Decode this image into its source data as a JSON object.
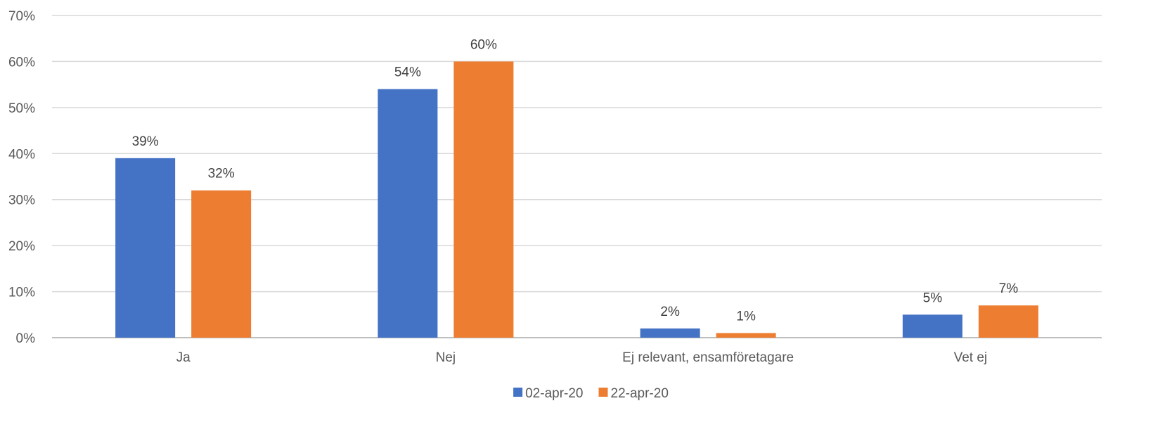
{
  "chart_data": {
    "type": "bar",
    "categories": [
      "Ja",
      "Nej",
      "Ej relevant, ensamföretagare",
      "Vet ej"
    ],
    "series": [
      {
        "name": "02-apr-20",
        "values": [
          39,
          54,
          2,
          5
        ],
        "color": "#4472C4"
      },
      {
        "name": "22-apr-20",
        "values": [
          32,
          60,
          1,
          7
        ],
        "color": "#ED7D31"
      }
    ],
    "yticks": [
      "0%",
      "10%",
      "20%",
      "30%",
      "40%",
      "50%",
      "60%",
      "70%"
    ],
    "ylim": [
      0,
      70
    ],
    "value_suffix": "%",
    "grid": true,
    "legend_position": "bottom"
  }
}
